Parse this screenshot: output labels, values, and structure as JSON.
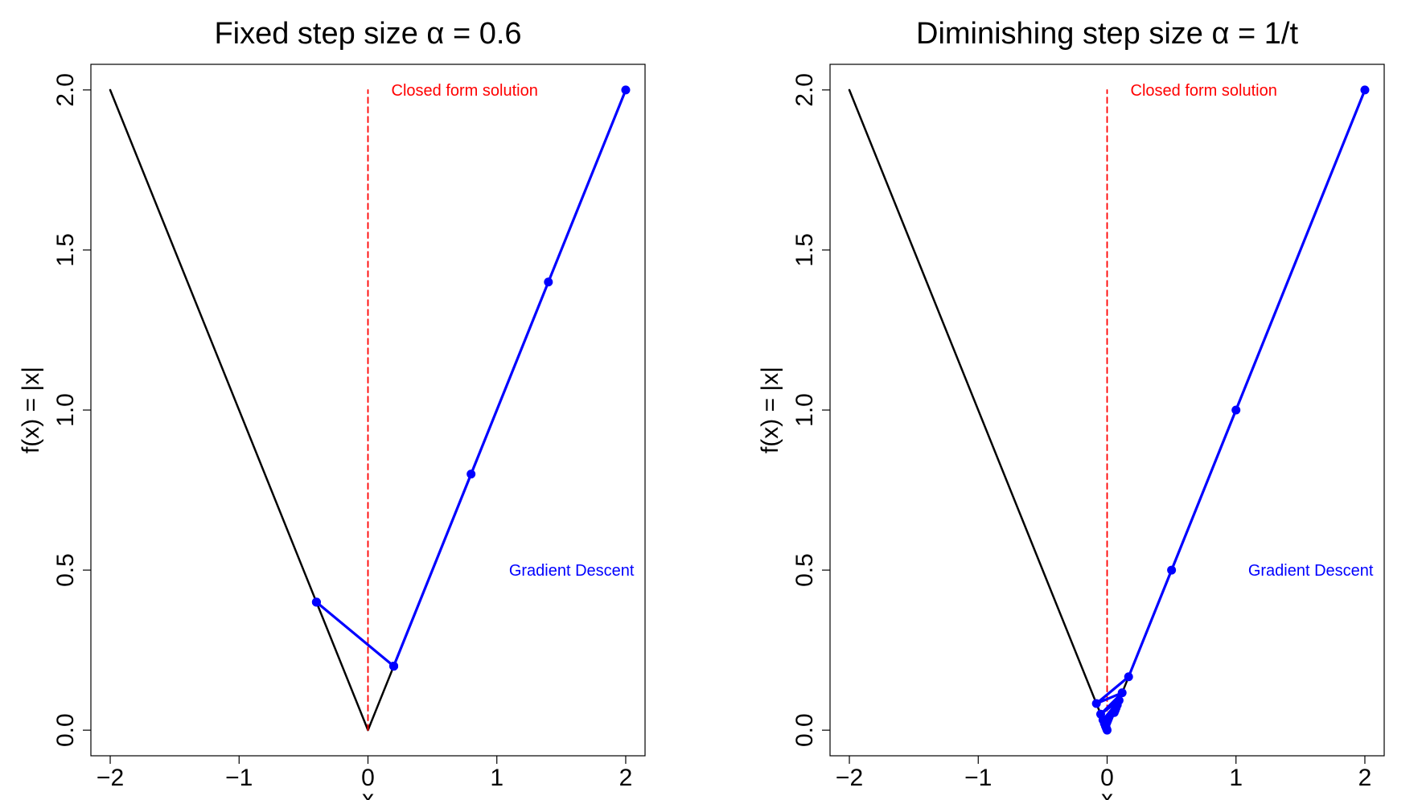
{
  "chart_data": [
    {
      "type": "line",
      "title": "Fixed step size α = 0.6",
      "xlabel": "x",
      "ylabel": "f(x) = |x|",
      "xlim": [
        -2.15,
        2.15
      ],
      "ylim": [
        -0.08,
        2.08
      ],
      "x_ticks": [
        -2,
        -1,
        0,
        1,
        2
      ],
      "x_tick_labels": [
        "−2",
        "−1",
        "0",
        "1",
        "2"
      ],
      "y_ticks": [
        0,
        0.5,
        1,
        1.5,
        2
      ],
      "y_tick_labels": [
        "0.0",
        "0.5",
        "1.0",
        "1.5",
        "2.0"
      ],
      "grid": false,
      "series": [
        {
          "role": "function",
          "color": "#000000",
          "x": [
            -2,
            0,
            2
          ],
          "y": [
            2,
            0,
            2
          ]
        },
        {
          "role": "optimum",
          "color": "#ff0000",
          "dashed": true,
          "x": [
            0,
            0
          ],
          "y": [
            0,
            2
          ]
        },
        {
          "role": "path",
          "color": "#0000ff",
          "x": [
            2.0,
            1.4,
            0.8,
            0.2,
            -0.4,
            0.2,
            -0.4,
            0.2,
            -0.4,
            0.2
          ],
          "y": [
            2.0,
            1.4,
            0.8,
            0.2,
            0.4,
            0.2,
            0.4,
            0.2,
            0.4,
            0.2
          ]
        }
      ],
      "annotations": [
        {
          "text": "Closed form solution",
          "color": "#ff0000",
          "x": 0.75,
          "y": 2.0
        },
        {
          "text": "Gradient Descent",
          "color": "#0000ff",
          "x": 1.58,
          "y": 0.5
        }
      ]
    },
    {
      "type": "line",
      "title": "Diminishing step size α = 1/t",
      "xlabel": "x",
      "ylabel": "f(x) = |x|",
      "xlim": [
        -2.15,
        2.15
      ],
      "ylim": [
        -0.08,
        2.08
      ],
      "x_ticks": [
        -2,
        -1,
        0,
        1,
        2
      ],
      "x_tick_labels": [
        "−2",
        "−1",
        "0",
        "1",
        "2"
      ],
      "y_ticks": [
        0,
        0.5,
        1,
        1.5,
        2
      ],
      "y_tick_labels": [
        "0.0",
        "0.5",
        "1.0",
        "1.5",
        "2.0"
      ],
      "grid": false,
      "series": [
        {
          "role": "function",
          "color": "#000000",
          "x": [
            -2,
            0,
            2
          ],
          "y": [
            2,
            0,
            2
          ]
        },
        {
          "role": "optimum",
          "color": "#ff0000",
          "dashed": true,
          "x": [
            0,
            0
          ],
          "y": [
            0,
            2
          ]
        },
        {
          "role": "path",
          "color": "#0000ff",
          "x": [
            2.0,
            1.0,
            0.5,
            0.1667,
            -0.0833,
            0.1167,
            -0.05,
            0.0929,
            -0.0321,
            0.079,
            -0.021,
            0.0699,
            -0.0134,
            0.0635,
            -0.0079,
            0.0588,
            -0.0037,
            0.055,
            0.0
          ],
          "y": [
            2.0,
            1.0,
            0.5,
            0.1667,
            0.0833,
            0.1167,
            0.05,
            0.0929,
            0.0321,
            0.079,
            0.021,
            0.0699,
            0.0134,
            0.0635,
            0.0079,
            0.0588,
            0.0037,
            0.055,
            0.0
          ]
        }
      ],
      "annotations": [
        {
          "text": "Closed form solution",
          "color": "#ff0000",
          "x": 0.75,
          "y": 2.0
        },
        {
          "text": "Gradient Descent",
          "color": "#0000ff",
          "x": 1.58,
          "y": 0.5
        }
      ]
    }
  ]
}
